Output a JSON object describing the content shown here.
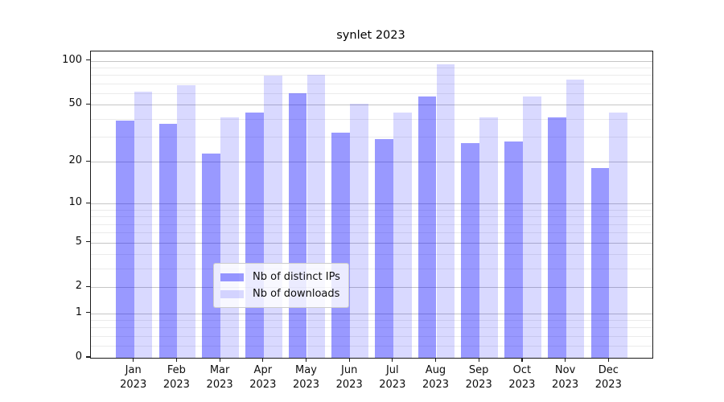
{
  "title": "synlet 2023",
  "year": "2023",
  "legend": {
    "items": [
      {
        "label": "Nb of distinct IPs",
        "color": "rgba(0,0,255,0.4)",
        "color_hex": "#9999ff"
      },
      {
        "label": "Nb of downloads",
        "color": "rgba(0,0,255,0.15)",
        "color_hex": "#d9d9ff"
      }
    ],
    "position": "lower center"
  },
  "chart_data": {
    "type": "bar",
    "title": "synlet 2023",
    "categories": [
      "Jan 2023",
      "Feb 2023",
      "Mar 2023",
      "Apr 2023",
      "May 2023",
      "Jun 2023",
      "Jul 2023",
      "Aug 2023",
      "Sep 2023",
      "Oct 2023",
      "Nov 2023",
      "Dec 2023"
    ],
    "months": [
      "Jan",
      "Feb",
      "Mar",
      "Apr",
      "May",
      "Jun",
      "Jul",
      "Aug",
      "Sep",
      "Oct",
      "Nov",
      "Dec"
    ],
    "series": [
      {
        "name": "Nb of distinct IPs",
        "color": "rgba(0,0,255,0.4)",
        "color_hex": "#9999ff",
        "values": [
          39,
          37,
          23,
          44,
          60,
          32,
          29,
          57,
          27,
          28,
          41,
          18
        ]
      },
      {
        "name": "Nb of downloads",
        "color": "rgba(0,0,255,0.15)",
        "color_hex": "#d9d9ff",
        "values": [
          62,
          68,
          41,
          79,
          80,
          51,
          44,
          95,
          41,
          57,
          75,
          44
        ]
      }
    ],
    "xlabel": "",
    "ylabel": "",
    "yscale": "log1p",
    "y_ticks": [
      0,
      1,
      2,
      5,
      10,
      20,
      50,
      100
    ],
    "y_minor_ticks": [
      0.2,
      0.4,
      0.6,
      0.8,
      3,
      4,
      6,
      7,
      8,
      9,
      30,
      40,
      60,
      70,
      80,
      90
    ],
    "ylim": [
      0,
      116
    ],
    "grid": true,
    "legend_position": "lower center"
  }
}
